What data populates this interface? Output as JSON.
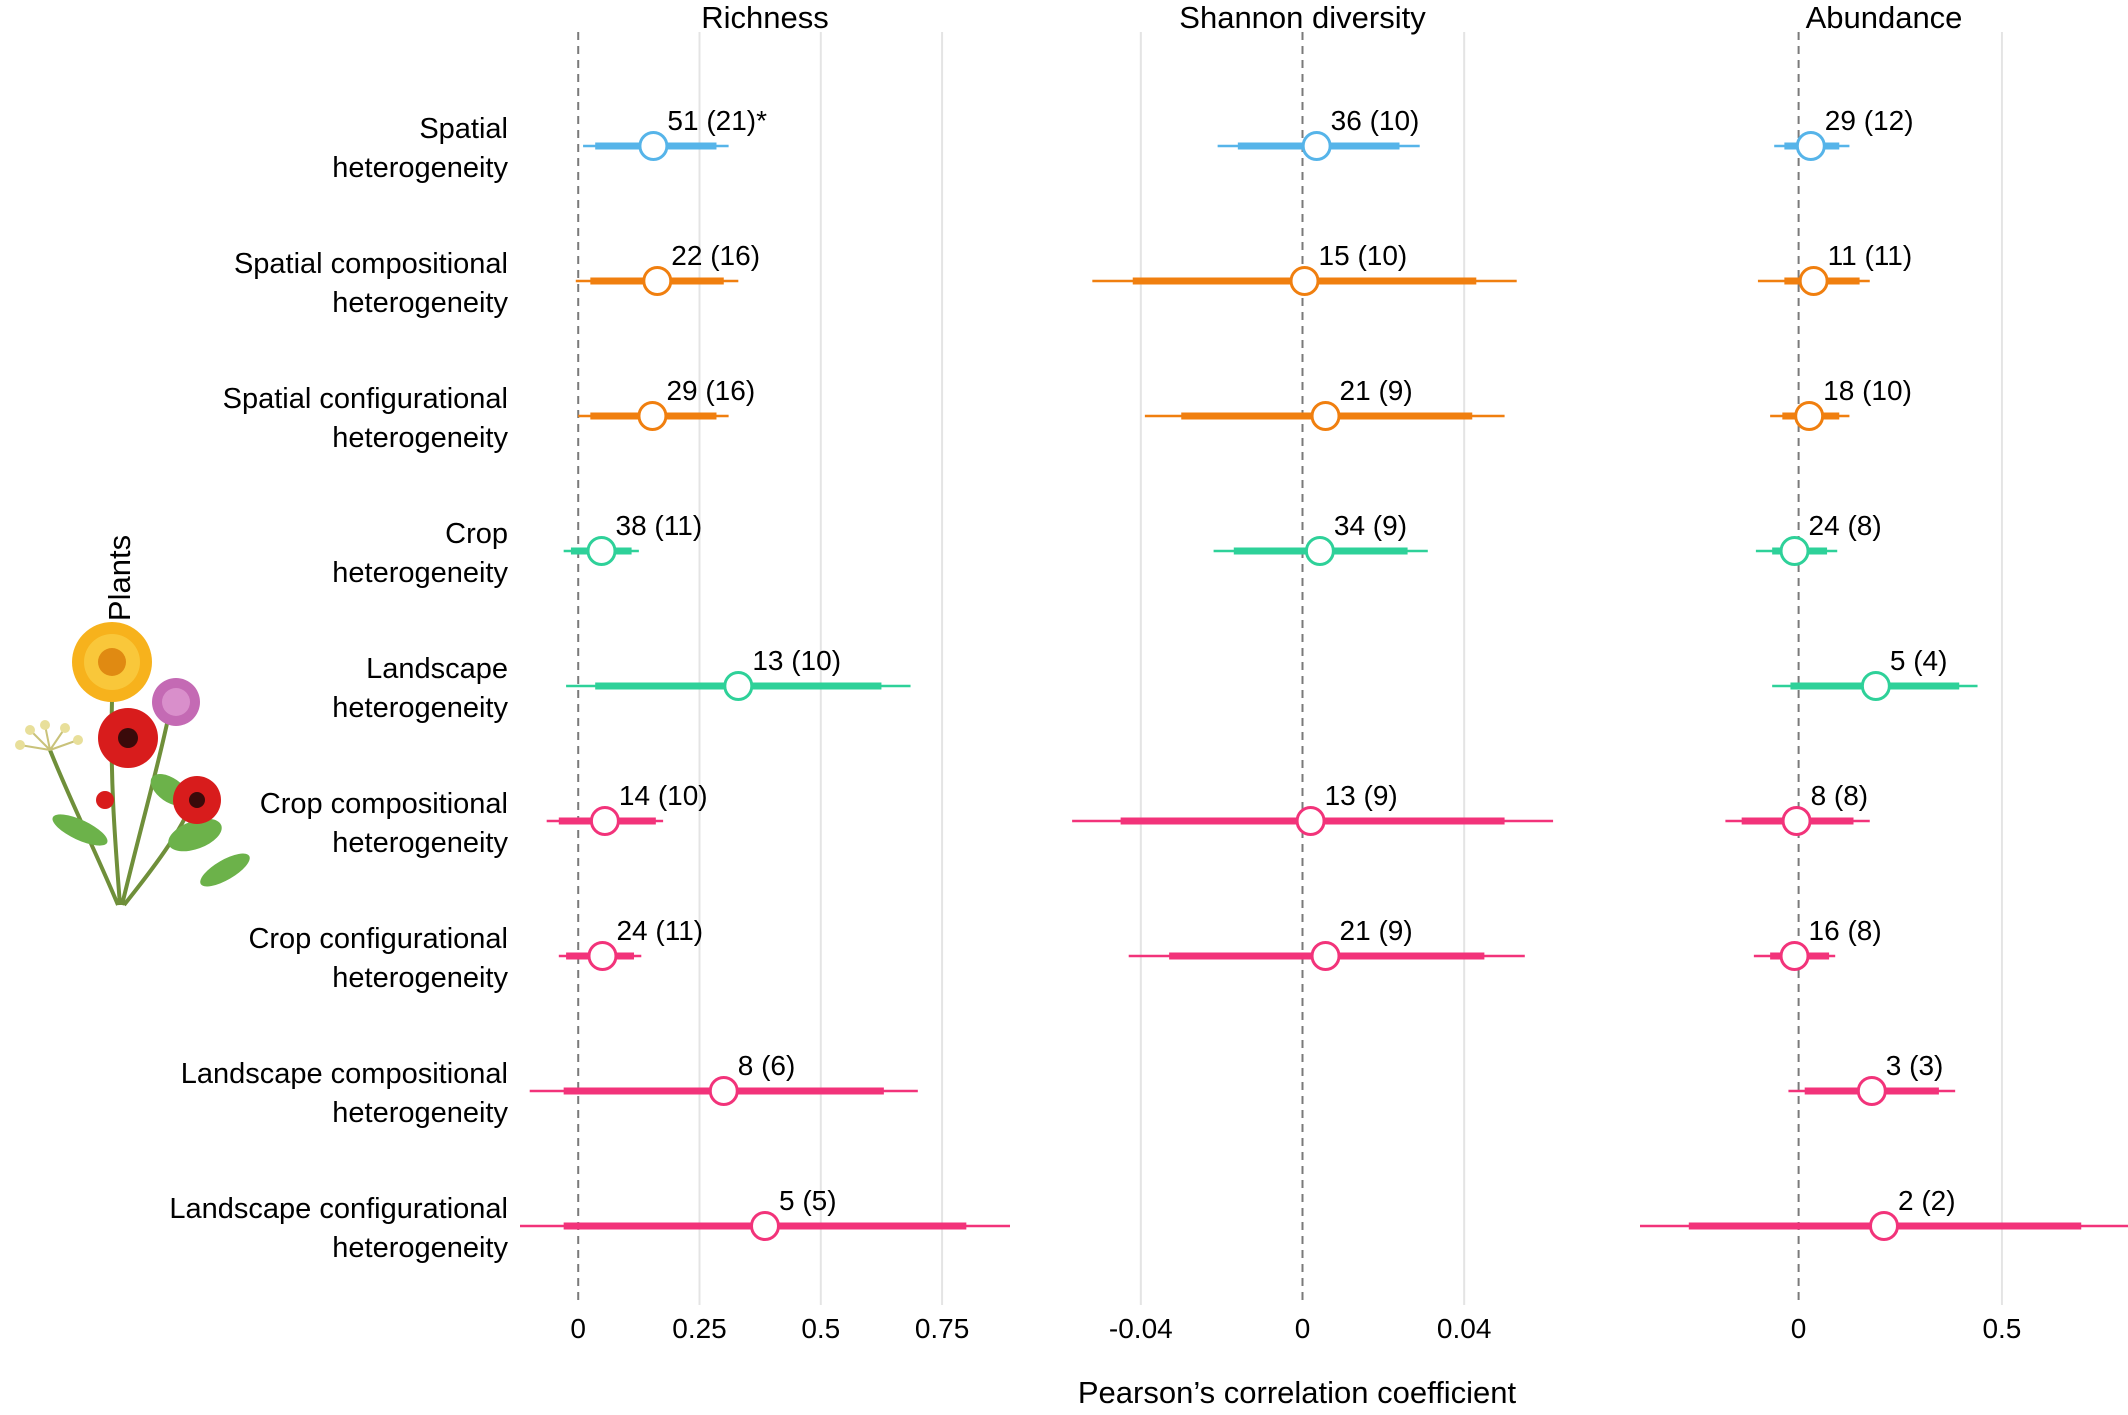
{
  "chart_data": {
    "type": "forest",
    "ylabel": "Plants",
    "xlabel": "Pearson’s correlation coefficient",
    "colors": {
      "blue": "#56b4e9",
      "orange": "#f07f0f",
      "green": "#2ed199",
      "pink": "#f2337a"
    },
    "predictors": [
      {
        "lines": [
          "Spatial",
          "heterogeneity"
        ],
        "color": "blue"
      },
      {
        "lines": [
          "Spatial compositional",
          "heterogeneity"
        ],
        "color": "orange"
      },
      {
        "lines": [
          "Spatial configurational",
          "heterogeneity"
        ],
        "color": "orange"
      },
      {
        "lines": [
          "Crop",
          "heterogeneity"
        ],
        "color": "green"
      },
      {
        "lines": [
          "Landscape",
          "heterogeneity"
        ],
        "color": "green"
      },
      {
        "lines": [
          "Crop compositional",
          "heterogeneity"
        ],
        "color": "pink"
      },
      {
        "lines": [
          "Crop configurational",
          "heterogeneity"
        ],
        "color": "pink"
      },
      {
        "lines": [
          "Landscape compositional",
          "heterogeneity"
        ],
        "color": "pink"
      },
      {
        "lines": [
          "Landscape configurational",
          "heterogeneity"
        ],
        "color": "pink"
      }
    ],
    "panels": [
      {
        "title": "Richness",
        "xlim": [
          -0.12,
          0.89
        ],
        "ticks": [
          0,
          0.25,
          0.5,
          0.75
        ],
        "tick_labels": [
          "0",
          "0.25",
          "0.5",
          "0.75"
        ],
        "points": [
          {
            "row": 0,
            "est": 0.155,
            "lo": 0.035,
            "hi": 0.285,
            "lo2": 0.01,
            "hi2": 0.31,
            "label": "51 (21)*"
          },
          {
            "row": 1,
            "est": 0.163,
            "lo": 0.025,
            "hi": 0.3,
            "lo2": -0.005,
            "hi2": 0.33,
            "label": "22 (16)"
          },
          {
            "row": 2,
            "est": 0.153,
            "lo": 0.025,
            "hi": 0.285,
            "lo2": 0.0,
            "hi2": 0.31,
            "label": "29 (16)"
          },
          {
            "row": 3,
            "est": 0.048,
            "lo": -0.015,
            "hi": 0.11,
            "lo2": -0.03,
            "hi2": 0.125,
            "label": "38 (11)"
          },
          {
            "row": 4,
            "est": 0.33,
            "lo": 0.035,
            "hi": 0.625,
            "lo2": -0.025,
            "hi2": 0.685,
            "label": "13 (10)"
          },
          {
            "row": 5,
            "est": 0.055,
            "lo": -0.04,
            "hi": 0.16,
            "lo2": -0.065,
            "hi2": 0.175,
            "label": "14 (10)"
          },
          {
            "row": 6,
            "est": 0.05,
            "lo": -0.025,
            "hi": 0.115,
            "lo2": -0.04,
            "hi2": 0.13,
            "label": "24 (11)"
          },
          {
            "row": 7,
            "est": 0.3,
            "lo": -0.03,
            "hi": 0.63,
            "lo2": -0.1,
            "hi2": 0.7,
            "label": "8 (6)"
          },
          {
            "row": 8,
            "est": 0.385,
            "lo": -0.03,
            "hi": 0.8,
            "lo2": -0.12,
            "hi2": 0.89,
            "label": "5 (5)"
          }
        ]
      },
      {
        "title": "Shannon diversity",
        "xlim": [
          -0.06,
          0.06
        ],
        "ticks": [
          -0.04,
          0,
          0.04
        ],
        "tick_labels": [
          "-0.04",
          "0",
          "0.04"
        ],
        "points": [
          {
            "row": 0,
            "est": 0.0035,
            "lo": -0.016,
            "hi": 0.024,
            "lo2": -0.021,
            "hi2": 0.029,
            "label": "36 (10)"
          },
          {
            "row": 1,
            "est": 0.0005,
            "lo": -0.042,
            "hi": 0.043,
            "lo2": -0.052,
            "hi2": 0.053,
            "label": "15 (10)"
          },
          {
            "row": 2,
            "est": 0.0057,
            "lo": -0.03,
            "hi": 0.042,
            "lo2": -0.039,
            "hi2": 0.05,
            "label": "21 (9)"
          },
          {
            "row": 3,
            "est": 0.0043,
            "lo": -0.017,
            "hi": 0.026,
            "lo2": -0.022,
            "hi2": 0.031,
            "label": "34 (9)"
          },
          {
            "row": 5,
            "est": 0.002,
            "lo": -0.045,
            "hi": 0.05,
            "lo2": -0.057,
            "hi2": 0.062,
            "label": "13 (9)"
          },
          {
            "row": 6,
            "est": 0.0057,
            "lo": -0.033,
            "hi": 0.045,
            "lo2": -0.043,
            "hi2": 0.055,
            "label": "21 (9)"
          }
        ]
      },
      {
        "title": "Abundance",
        "xlim": [
          -0.39,
          0.81
        ],
        "ticks": [
          0,
          0.5
        ],
        "tick_labels": [
          "0",
          "0.5"
        ],
        "points": [
          {
            "row": 0,
            "est": 0.03,
            "lo": -0.035,
            "hi": 0.1,
            "lo2": -0.06,
            "hi2": 0.125,
            "label": "29 (12)"
          },
          {
            "row": 1,
            "est": 0.037,
            "lo": -0.035,
            "hi": 0.15,
            "lo2": -0.1,
            "hi2": 0.175,
            "label": "11 (11)"
          },
          {
            "row": 2,
            "est": 0.026,
            "lo": -0.04,
            "hi": 0.1,
            "lo2": -0.07,
            "hi2": 0.125,
            "label": "18 (10)"
          },
          {
            "row": 3,
            "est": -0.01,
            "lo": -0.065,
            "hi": 0.07,
            "lo2": -0.105,
            "hi2": 0.095,
            "label": "24 (8)"
          },
          {
            "row": 4,
            "est": 0.19,
            "lo": -0.02,
            "hi": 0.395,
            "lo2": -0.065,
            "hi2": 0.44,
            "label": "5 (4)"
          },
          {
            "row": 5,
            "est": -0.005,
            "lo": -0.14,
            "hi": 0.135,
            "lo2": -0.18,
            "hi2": 0.175,
            "label": "8 (8)"
          },
          {
            "row": 6,
            "est": -0.01,
            "lo": -0.07,
            "hi": 0.075,
            "lo2": -0.11,
            "hi2": 0.09,
            "label": "16 (8)"
          },
          {
            "row": 7,
            "est": 0.18,
            "lo": 0.015,
            "hi": 0.345,
            "lo2": -0.025,
            "hi2": 0.385,
            "label": "3 (3)"
          },
          {
            "row": 8,
            "est": 0.21,
            "lo": -0.27,
            "hi": 0.695,
            "lo2": -0.39,
            "hi2": 0.81,
            "label": "2 (2)"
          }
        ]
      }
    ]
  }
}
